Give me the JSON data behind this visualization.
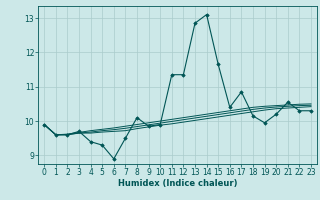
{
  "xlabel": "Humidex (Indice chaleur)",
  "bg_color": "#cce8e8",
  "grid_color": "#aacccc",
  "line_color": "#005555",
  "xlim": [
    -0.5,
    23.5
  ],
  "ylim": [
    8.75,
    13.35
  ],
  "yticks": [
    9,
    10,
    11,
    12,
    13
  ],
  "xticks": [
    0,
    1,
    2,
    3,
    4,
    5,
    6,
    7,
    8,
    9,
    10,
    11,
    12,
    13,
    14,
    15,
    16,
    17,
    18,
    19,
    20,
    21,
    22,
    23
  ],
  "series": [
    [
      9.9,
      9.6,
      9.6,
      9.7,
      9.4,
      9.3,
      8.9,
      9.5,
      10.1,
      9.85,
      9.9,
      11.35,
      11.35,
      12.85,
      13.1,
      11.65,
      10.4,
      10.85,
      10.15,
      9.95,
      10.2,
      10.55,
      10.3,
      10.3
    ],
    [
      9.9,
      9.6,
      9.6,
      9.65,
      9.65,
      9.68,
      9.7,
      9.72,
      9.78,
      9.83,
      9.88,
      9.92,
      9.97,
      10.02,
      10.07,
      10.12,
      10.17,
      10.22,
      10.27,
      10.32,
      10.36,
      10.38,
      10.4,
      10.42
    ],
    [
      9.9,
      9.6,
      9.61,
      9.65,
      9.68,
      9.72,
      9.75,
      9.79,
      9.84,
      9.89,
      9.94,
      9.99,
      10.04,
      10.09,
      10.14,
      10.19,
      10.24,
      10.29,
      10.34,
      10.38,
      10.41,
      10.43,
      10.45,
      10.46
    ],
    [
      9.9,
      9.6,
      9.62,
      9.67,
      9.72,
      9.76,
      9.8,
      9.85,
      9.9,
      9.95,
      10.0,
      10.05,
      10.1,
      10.15,
      10.2,
      10.25,
      10.3,
      10.35,
      10.4,
      10.43,
      10.45,
      10.47,
      10.49,
      10.5
    ]
  ]
}
